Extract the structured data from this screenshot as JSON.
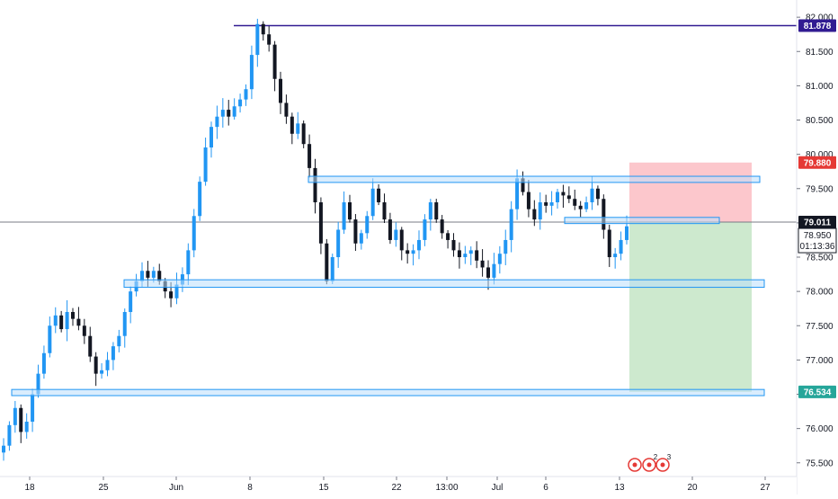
{
  "chart_data": {
    "type": "candlestick",
    "title": "",
    "ylim": [
      75.3,
      82.12
    ],
    "y_ticks": [
      "82.000",
      "81.500",
      "81.000",
      "80.500",
      "80.000",
      "79.500",
      "79.000",
      "78.500",
      "78.000",
      "77.500",
      "77.000",
      "76.500",
      "76.000",
      "75.500"
    ],
    "x_ticks": [
      "18",
      "25",
      "Jun",
      "8",
      "15",
      "22",
      "13:00",
      "Jul",
      "6",
      "13",
      "20",
      "27"
    ],
    "price_labels": {
      "resistance_high": {
        "value": "81.878",
        "color": "#311b92"
      },
      "stop_loss": {
        "value": "79.880",
        "color": "#e53935"
      },
      "last_price": {
        "value": "79.011",
        "color": "#131722"
      },
      "current_price": {
        "value": "78.950",
        "color": "#131722"
      },
      "countdown": {
        "value": "01:13:36",
        "color": "#131722"
      },
      "take_profit": {
        "value": "76.534",
        "color": "#26a69a"
      }
    },
    "horizontal_lines": [
      {
        "name": "resistance-line",
        "y": 81.878,
        "color": "#311b92"
      },
      {
        "name": "last-price-line",
        "y": 79.011,
        "color": "#787b86"
      }
    ],
    "zones": [
      {
        "name": "zone-upper",
        "y_top": 79.68,
        "y_bottom": 79.59
      },
      {
        "name": "zone-middle",
        "y_top": 78.17,
        "y_bottom": 78.06
      },
      {
        "name": "zone-lower",
        "y_top": 76.57,
        "y_bottom": 76.48
      },
      {
        "name": "zone-entry",
        "y_top": 79.08,
        "y_bottom": 78.99
      }
    ],
    "position": {
      "entry": 79.011,
      "stop": 79.88,
      "target": 76.534
    },
    "event_badges": [
      "2",
      "3"
    ],
    "close_path": [
      75.75,
      76.05,
      76.3,
      75.95,
      76.1,
      76.5,
      76.8,
      77.1,
      77.5,
      77.65,
      77.45,
      77.7,
      77.6,
      77.5,
      77.35,
      77.05,
      76.8,
      76.85,
      77.0,
      77.2,
      77.35,
      77.7,
      78.0,
      78.15,
      78.3,
      78.2,
      78.3,
      78.15,
      78.0,
      77.9,
      78.1,
      78.25,
      78.6,
      79.1,
      79.6,
      80.1,
      80.4,
      80.55,
      80.65,
      80.55,
      80.7,
      80.8,
      80.95,
      81.45,
      81.9,
      81.75,
      81.6,
      81.1,
      80.75,
      80.55,
      80.3,
      80.45,
      80.15,
      79.8,
      79.3,
      78.7,
      78.15,
      78.5,
      78.9,
      79.3,
      79.05,
      78.7,
      78.85,
      79.1,
      79.5,
      79.3,
      79.05,
      78.75,
      78.9,
      78.6,
      78.55,
      78.6,
      78.75,
      79.05,
      79.3,
      79.05,
      78.85,
      78.75,
      78.6,
      78.5,
      78.55,
      78.6,
      78.45,
      78.35,
      78.2,
      78.4,
      78.55,
      78.75,
      79.2,
      79.65,
      79.45,
      79.2,
      79.05,
      79.3,
      79.25,
      79.3,
      79.45,
      79.4,
      79.35,
      79.25,
      79.2,
      79.3,
      79.5,
      79.35,
      78.9,
      78.5,
      78.55,
      78.75,
      78.95
    ]
  }
}
